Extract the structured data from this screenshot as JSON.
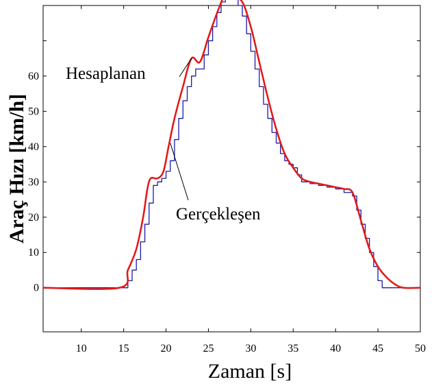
{
  "chart_data": {
    "type": "line",
    "title": "",
    "xlabel": "Zaman [s]",
    "ylabel": "Araç Hızı [km/h]",
    "xlim": [
      5.5,
      50
    ],
    "ylim": [
      -12.5,
      80
    ],
    "xticks": [
      10,
      15,
      20,
      25,
      30,
      35,
      40,
      45,
      50
    ],
    "yticks": [
      0,
      10,
      20,
      30,
      40,
      50,
      60
    ],
    "extra_yticks_unlabeled": [
      70,
      80
    ],
    "grid": false,
    "legend": "none",
    "annotations": [
      {
        "text": "Hesaplanan",
        "points_to": [
          23.0,
          65.0
        ]
      },
      {
        "text": "Gerçekleşen",
        "points_to": [
          20.5,
          41.0
        ]
      }
    ],
    "series": [
      {
        "color": "#e01b1b",
        "style": "smooth",
        "x": [
          5.5,
          14.5,
          15.5,
          16.5,
          17.3,
          17.8,
          18.2,
          19.0,
          19.7,
          20.3,
          21.0,
          22.0,
          23.0,
          24.0,
          25.0,
          26.2,
          27.0,
          28.0,
          29.0,
          30.0,
          31.0,
          32.0,
          33.0,
          34.0,
          35.0,
          36.0,
          37.0,
          38.0,
          39.0,
          40.0,
          41.0,
          42.0,
          43.0,
          44.0,
          45.0,
          46.0,
          47.0,
          48.0,
          50.0
        ],
        "y": [
          0,
          0,
          5,
          11,
          20,
          28,
          31,
          31,
          33,
          40,
          48,
          57,
          65,
          64,
          71,
          79,
          83,
          82,
          81,
          74,
          64,
          54,
          45,
          38,
          34,
          31,
          30,
          29.5,
          29,
          28.5,
          28,
          27,
          19,
          11,
          6,
          3,
          1,
          0,
          0
        ]
      },
      {
        "color": "#1a1aa8",
        "style": "step",
        "x": [
          5.5,
          14.8,
          15.5,
          16.0,
          16.5,
          17.0,
          17.5,
          18.0,
          18.5,
          19.0,
          19.5,
          20.0,
          20.5,
          21.0,
          21.5,
          22.0,
          22.5,
          23.0,
          23.5,
          24.0,
          24.5,
          25.0,
          25.5,
          26.0,
          26.5,
          27.0,
          27.5,
          28.0,
          28.5,
          29.0,
          29.5,
          30.0,
          30.5,
          31.0,
          31.5,
          32.0,
          32.5,
          33.0,
          33.5,
          34.0,
          34.5,
          35.0,
          35.5,
          36.0,
          37.0,
          38.0,
          39.0,
          40.0,
          41.0,
          42.0,
          42.5,
          43.0,
          43.5,
          44.0,
          44.5,
          45.0,
          45.5,
          46.0,
          47.0,
          48.0,
          50.0
        ],
        "y": [
          0,
          0,
          2,
          5,
          8,
          13,
          18,
          24,
          29,
          30,
          31,
          33,
          36,
          42,
          48,
          53,
          57,
          60,
          62,
          62,
          66,
          70,
          74,
          78,
          81,
          82,
          82,
          82,
          80,
          77,
          72,
          67,
          62,
          57,
          52,
          48,
          44,
          41,
          38,
          36,
          35,
          34,
          32,
          30,
          29.5,
          29,
          28.5,
          28,
          27,
          26,
          22,
          18,
          14,
          10,
          6,
          2,
          0,
          0,
          0,
          0,
          0
        ]
      }
    ]
  }
}
